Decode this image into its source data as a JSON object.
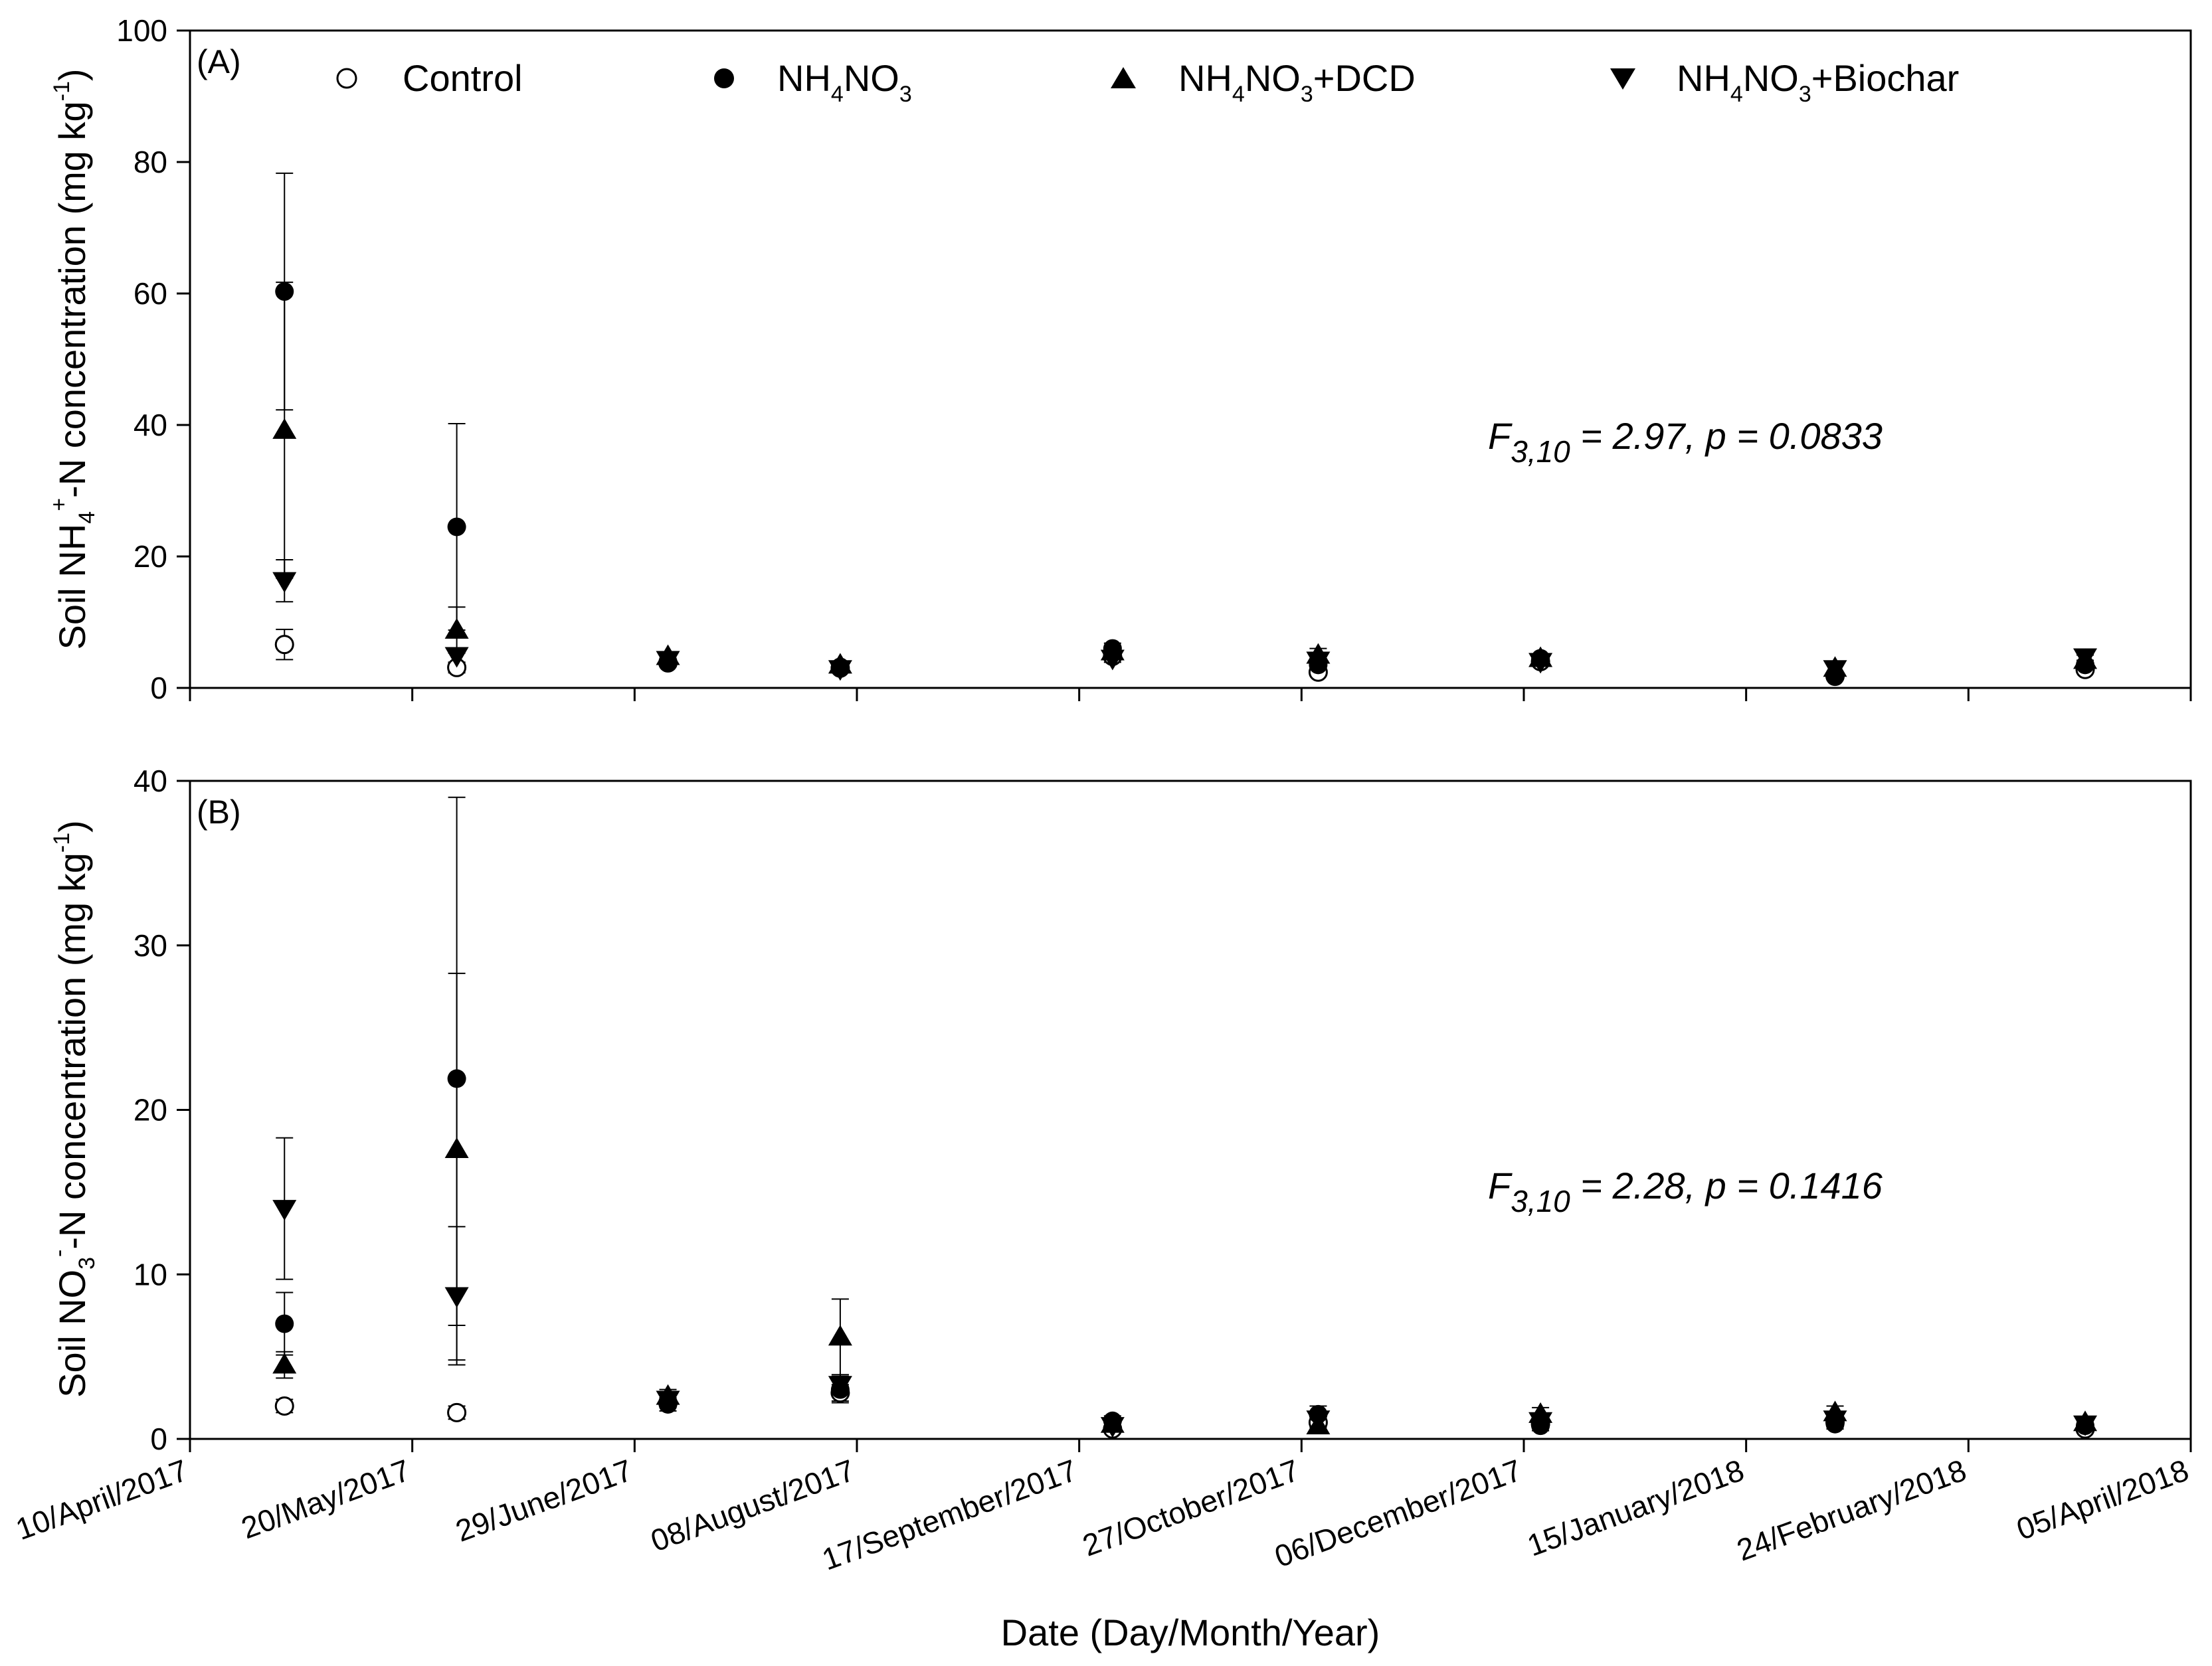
{
  "chart_data": {
    "type": "scatter",
    "shared_x_axis": {
      "label": "Date (Day/Month/Year)",
      "ticks": [
        {
          "day": 0,
          "label": "10/April/2017"
        },
        {
          "day": 40,
          "label": "20/May/2017"
        },
        {
          "day": 80,
          "label": "29/June/2017"
        },
        {
          "day": 120,
          "label": "08/August/2017"
        },
        {
          "day": 160,
          "label": "17/September/2017"
        },
        {
          "day": 200,
          "label": "27/October/2017"
        },
        {
          "day": 240,
          "label": "06/December/2017"
        },
        {
          "day": 280,
          "label": "15/January/2018"
        },
        {
          "day": 320,
          "label": "24/February/2018"
        },
        {
          "day": 360,
          "label": "05/April/2018"
        }
      ],
      "xlim": [
        0,
        360
      ]
    },
    "legend": [
      {
        "key": "control",
        "label": "Control",
        "marker": "open-circle"
      },
      {
        "key": "nh4no3",
        "label": "NH4NO3",
        "base": "NH",
        "sub1": "4",
        "mid": "NO",
        "sub2": "3",
        "tail": "",
        "marker": "filled-circle"
      },
      {
        "key": "dcd",
        "label": "NH4NO3+DCD",
        "base": "NH",
        "sub1": "4",
        "mid": "NO",
        "sub2": "3",
        "tail": "+DCD",
        "marker": "triangle-up"
      },
      {
        "key": "biochar",
        "label": "NH4NO3+Biochar",
        "base": "NH",
        "sub1": "4",
        "mid": "NO",
        "sub2": "3",
        "tail": "+Biochar",
        "marker": "triangle-down"
      }
    ],
    "panels": [
      {
        "id": "A",
        "panel_label": "(A)",
        "ylabel": "Soil NH4+-N concentration (mg kg-1)",
        "ylabel_parts": {
          "pre": "Soil NH",
          "sub": "4",
          "sup": "+",
          "post": "-N concentration (mg kg",
          "unit_sup": "-1",
          "close": ")"
        },
        "ylim": [
          0,
          100
        ],
        "yticks": [
          0,
          20,
          40,
          60,
          80,
          100
        ],
        "stat": {
          "F": "F",
          "df": "3,10",
          "rest": " = 2.97, p = 0.0833"
        },
        "series": {
          "control": [
            {
              "x": 17,
              "y": 6.6,
              "err": 2.3
            },
            {
              "x": 48,
              "y": 3.1,
              "err": 0.8
            },
            {
              "x": 86,
              "y": 3.8,
              "err": 0.5
            },
            {
              "x": 117,
              "y": 3.0,
              "err": 0.4
            },
            {
              "x": 166,
              "y": 4.8,
              "err": 0.6
            },
            {
              "x": 203,
              "y": 2.4,
              "err": 0.5
            },
            {
              "x": 243,
              "y": 4.0,
              "err": 0.5
            },
            {
              "x": 296,
              "y": 1.8,
              "err": 0.4
            },
            {
              "x": 341,
              "y": 2.8,
              "err": 0.5
            }
          ],
          "nh4no3": [
            {
              "x": 17,
              "y": 60.3,
              "err": 18.0
            },
            {
              "x": 48,
              "y": 24.5,
              "err": 15.7
            },
            {
              "x": 86,
              "y": 4.0,
              "err": 0.5
            },
            {
              "x": 117,
              "y": 3.2,
              "err": 0.4
            },
            {
              "x": 166,
              "y": 6.0,
              "err": 0.8
            },
            {
              "x": 203,
              "y": 3.5,
              "err": 0.9
            },
            {
              "x": 243,
              "y": 4.5,
              "err": 0.5
            },
            {
              "x": 296,
              "y": 1.7,
              "err": 0.5
            },
            {
              "x": 341,
              "y": 3.5,
              "err": 0.7
            }
          ],
          "dcd": [
            {
              "x": 17,
              "y": 39.2,
              "err": 22.5
            },
            {
              "x": 48,
              "y": 8.8,
              "err": 3.5
            },
            {
              "x": 86,
              "y": 4.8,
              "err": 0.6
            },
            {
              "x": 117,
              "y": 3.5,
              "err": 0.5
            },
            {
              "x": 166,
              "y": 5.5,
              "err": 0.7
            },
            {
              "x": 203,
              "y": 5.0,
              "err": 1.0
            },
            {
              "x": 243,
              "y": 4.5,
              "err": 0.5
            },
            {
              "x": 296,
              "y": 3.0,
              "err": 0.6
            },
            {
              "x": 341,
              "y": 4.2,
              "err": 0.8
            }
          ],
          "biochar": [
            {
              "x": 17,
              "y": 16.3,
              "err": 3.2
            },
            {
              "x": 48,
              "y": 4.9,
              "err": 1.0
            },
            {
              "x": 86,
              "y": 4.3,
              "err": 0.5
            },
            {
              "x": 117,
              "y": 2.9,
              "err": 0.4
            },
            {
              "x": 166,
              "y": 4.5,
              "err": 0.6
            },
            {
              "x": 203,
              "y": 4.2,
              "err": 0.8
            },
            {
              "x": 243,
              "y": 4.0,
              "err": 0.5
            },
            {
              "x": 296,
              "y": 2.9,
              "err": 0.6
            },
            {
              "x": 341,
              "y": 4.7,
              "err": 0.8
            }
          ]
        }
      },
      {
        "id": "B",
        "panel_label": "(B)",
        "ylabel": "Soil NO3--N concentration (mg kg-1)",
        "ylabel_parts": {
          "pre": "Soil NO",
          "sub": "3",
          "sup": "-",
          "post": "-N concentration (mg kg",
          "unit_sup": "-1",
          "close": ")"
        },
        "ylim": [
          0,
          40
        ],
        "yticks": [
          0,
          10,
          20,
          30,
          40
        ],
        "stat": {
          "F": "F",
          "df": "3,10",
          "rest": " = 2.28, p = 0.1416"
        },
        "series": {
          "control": [
            {
              "x": 17,
              "y": 2.0,
              "err": 0.4
            },
            {
              "x": 48,
              "y": 1.6,
              "err": 0.4
            },
            {
              "x": 86,
              "y": 2.2,
              "err": 0.3
            },
            {
              "x": 117,
              "y": 2.8,
              "err": 0.5
            },
            {
              "x": 166,
              "y": 0.6,
              "err": 0.2
            },
            {
              "x": 203,
              "y": 1.0,
              "err": 0.3
            },
            {
              "x": 243,
              "y": 0.9,
              "err": 0.2
            },
            {
              "x": 296,
              "y": 1.0,
              "err": 0.3
            },
            {
              "x": 341,
              "y": 0.6,
              "err": 0.2
            }
          ],
          "nh4no3": [
            {
              "x": 17,
              "y": 7.0,
              "err": 1.9
            },
            {
              "x": 48,
              "y": 21.9,
              "err": 17.1
            },
            {
              "x": 86,
              "y": 2.1,
              "err": 0.4
            },
            {
              "x": 117,
              "y": 3.0,
              "err": 0.8
            },
            {
              "x": 166,
              "y": 1.1,
              "err": 0.3
            },
            {
              "x": 203,
              "y": 1.5,
              "err": 0.5
            },
            {
              "x": 243,
              "y": 0.8,
              "err": 0.3
            },
            {
              "x": 296,
              "y": 0.9,
              "err": 0.3
            },
            {
              "x": 341,
              "y": 0.8,
              "err": 0.2
            }
          ],
          "dcd": [
            {
              "x": 17,
              "y": 4.5,
              "err": 0.8
            },
            {
              "x": 48,
              "y": 17.6,
              "err": 10.7
            },
            {
              "x": 86,
              "y": 2.6,
              "err": 0.4
            },
            {
              "x": 117,
              "y": 6.2,
              "err": 2.3
            },
            {
              "x": 166,
              "y": 0.9,
              "err": 0.3
            },
            {
              "x": 203,
              "y": 0.8,
              "err": 0.4
            },
            {
              "x": 243,
              "y": 1.5,
              "err": 0.4
            },
            {
              "x": 296,
              "y": 1.6,
              "err": 0.4
            },
            {
              "x": 341,
              "y": 1.0,
              "err": 0.2
            }
          ],
          "biochar": [
            {
              "x": 17,
              "y": 14.0,
              "err": 4.3
            },
            {
              "x": 48,
              "y": 8.7,
              "err": 4.2
            },
            {
              "x": 86,
              "y": 2.4,
              "err": 0.4
            },
            {
              "x": 117,
              "y": 3.3,
              "err": 0.6
            },
            {
              "x": 166,
              "y": 0.8,
              "err": 0.3
            },
            {
              "x": 203,
              "y": 1.2,
              "err": 0.4
            },
            {
              "x": 243,
              "y": 1.1,
              "err": 0.3
            },
            {
              "x": 296,
              "y": 1.2,
              "err": 0.4
            },
            {
              "x": 341,
              "y": 0.9,
              "err": 0.2
            }
          ]
        }
      }
    ]
  }
}
